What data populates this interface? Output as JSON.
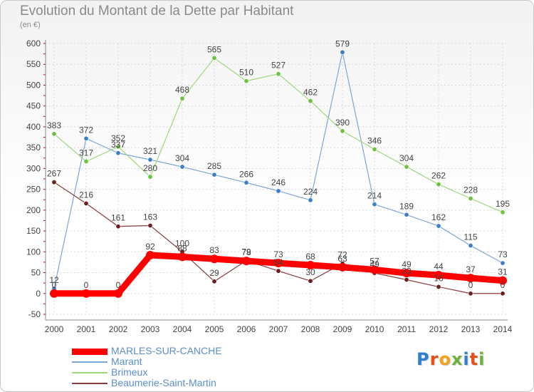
{
  "title": "Evolution du Montant de la Dette par Habitant",
  "unit": "(en €)",
  "logo": {
    "text": "Proxiti",
    "colors": [
      "#2f7fd1",
      "#e84d1c",
      "#f2a31b",
      "#6bb33a",
      "#2f7fd1",
      "#e84d1c",
      "#6bb33a"
    ]
  },
  "chart_data": {
    "type": "line",
    "title": "Evolution du Montant de la Dette par Habitant",
    "ylabel": "(en €)",
    "xlabel": "",
    "x": [
      "2000",
      "2001",
      "2002",
      "2003",
      "2004",
      "2005",
      "2006",
      "2007",
      "2008",
      "2009",
      "2010",
      "2011",
      "2012",
      "2013",
      "2014"
    ],
    "ylim": [
      -50,
      600
    ],
    "yticks": [
      -50,
      0,
      50,
      100,
      150,
      200,
      250,
      300,
      350,
      400,
      450,
      500,
      550,
      600
    ],
    "grid": true,
    "legend_position": "bottom-left",
    "series": [
      {
        "name": "MARLES-SUR-CANCHE",
        "color": "#ff0000",
        "marker_color": "#ff0000",
        "width": 9,
        "labels_shown": true,
        "values": [
          0,
          0,
          0,
          92,
          88,
          83,
          78,
          73,
          68,
          63,
          57,
          49,
          44,
          37,
          31
        ]
      },
      {
        "name": "Marant",
        "color": "#7aa7d8",
        "marker_color": "#3c7fc8",
        "width": 1.2,
        "labels_shown": true,
        "values": [
          12,
          372,
          337,
          321,
          304,
          285,
          266,
          246,
          224,
          579,
          214,
          189,
          162,
          115,
          73
        ]
      },
      {
        "name": "Brimeux",
        "color": "#9fd87a",
        "marker_color": "#6cc13e",
        "width": 1.2,
        "labels_shown": true,
        "values": [
          383,
          317,
          352,
          280,
          468,
          565,
          510,
          527,
          462,
          390,
          346,
          304,
          262,
          228,
          195
        ]
      },
      {
        "name": "Beaumerie-Saint-Martin",
        "color": "#8a3b3b",
        "marker_color": "#6b1f1f",
        "width": 1.2,
        "labels_shown": true,
        "values": [
          267,
          216,
          161,
          163,
          100,
          29,
          79,
          54,
          30,
          72,
          49,
          33,
          16,
          0,
          0
        ]
      }
    ]
  }
}
